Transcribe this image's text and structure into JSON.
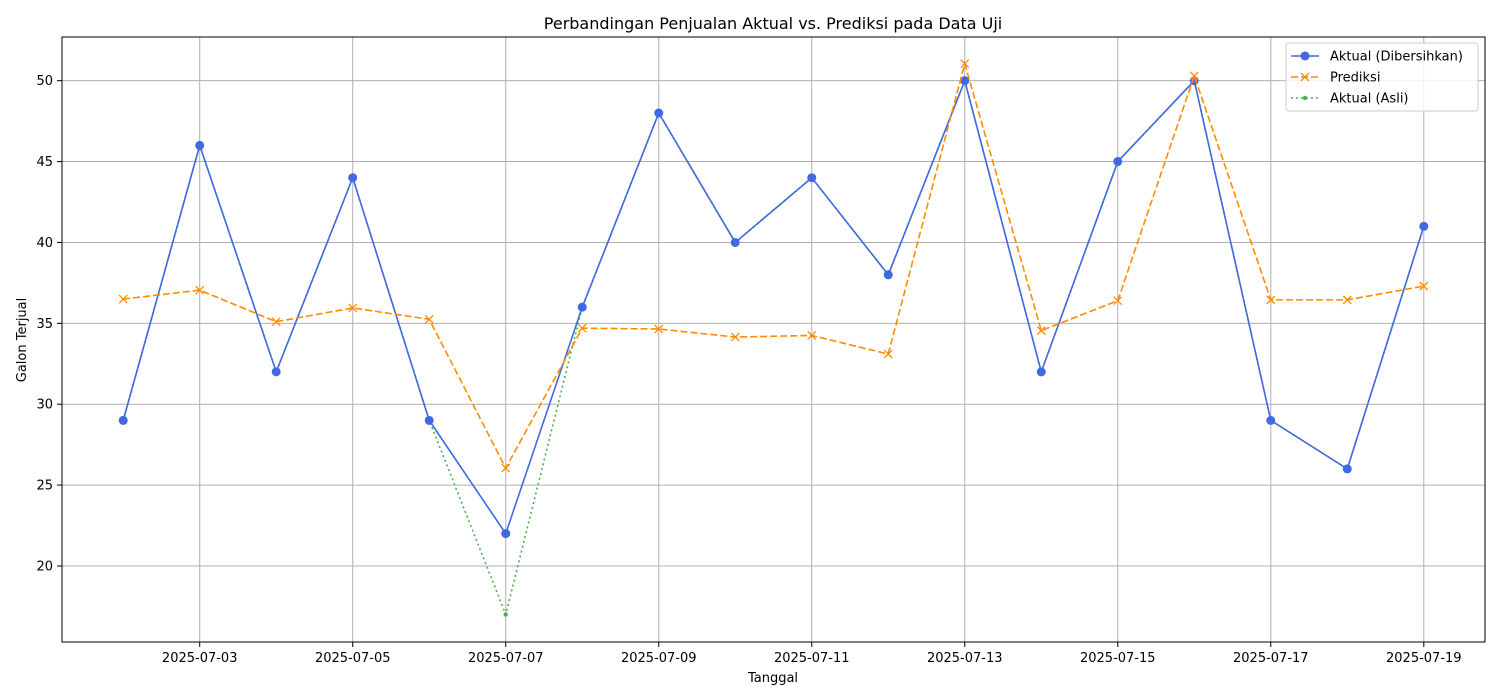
{
  "chart_data": {
    "type": "line",
    "title": "Perbandingan Penjualan Aktual vs. Prediksi pada Data Uji",
    "xlabel": "Tanggal",
    "ylabel": "Galon Terjual",
    "x": [
      "2025-07-02",
      "2025-07-03",
      "2025-07-04",
      "2025-07-05",
      "2025-07-06",
      "2025-07-07",
      "2025-07-08",
      "2025-07-09",
      "2025-07-10",
      "2025-07-11",
      "2025-07-12",
      "2025-07-13",
      "2025-07-14",
      "2025-07-15",
      "2025-07-16",
      "2025-07-17",
      "2025-07-18",
      "2025-07-19"
    ],
    "xticks": [
      "2025-07-03",
      "2025-07-05",
      "2025-07-07",
      "2025-07-09",
      "2025-07-11",
      "2025-07-13",
      "2025-07-15",
      "2025-07-17",
      "2025-07-19"
    ],
    "yticks": [
      20,
      25,
      30,
      35,
      40,
      45,
      50
    ],
    "ylim": [
      15.3,
      52.7
    ],
    "xlim": [
      "2025-07-01T04:48",
      "2025-07-19T19:12"
    ],
    "grid": true,
    "legend_position": "top-right",
    "series": [
      {
        "name": "Aktual (Asli)",
        "color": "#4caf50",
        "style": "dotted",
        "marker": "small-dot",
        "values": [
          29,
          46,
          32,
          44,
          29,
          17,
          36,
          48,
          40,
          44,
          38,
          50,
          32,
          45,
          50,
          29,
          26,
          41
        ]
      },
      {
        "name": "Aktual (Dibersihkan)",
        "color": "#4169e1",
        "style": "solid",
        "marker": "circle",
        "values": [
          29,
          46,
          32,
          44,
          29,
          22,
          36,
          48,
          40,
          44,
          38,
          50,
          32,
          45,
          50,
          29,
          26,
          41
        ]
      },
      {
        "name": "Prediksi",
        "color": "#ff8c00",
        "style": "dashed",
        "marker": "x",
        "values": [
          36.5,
          37.05,
          35.1,
          35.95,
          35.25,
          26.05,
          34.7,
          34.65,
          34.15,
          34.25,
          33.1,
          51.05,
          34.55,
          36.4,
          50.3,
          36.45,
          36.45,
          37.3
        ]
      }
    ],
    "legend_order": [
      "Aktual (Dibersihkan)",
      "Prediksi",
      "Aktual (Asli)"
    ]
  }
}
